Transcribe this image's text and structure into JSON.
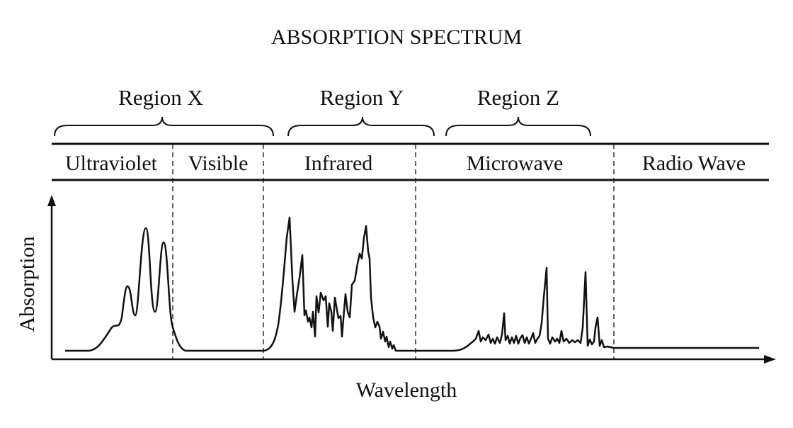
{
  "title": "ABSORPTION SPECTRUM",
  "regions": [
    "Region X",
    "Region Y",
    "Region Z"
  ],
  "bands": [
    "Ultraviolet",
    "Visible",
    "Infrared",
    "Microwave",
    "Radio Wave"
  ],
  "axes": {
    "xlabel": "Wavelength",
    "ylabel": "Absorption"
  },
  "colors": {
    "line": "#111111",
    "background": "#ffffff"
  }
}
